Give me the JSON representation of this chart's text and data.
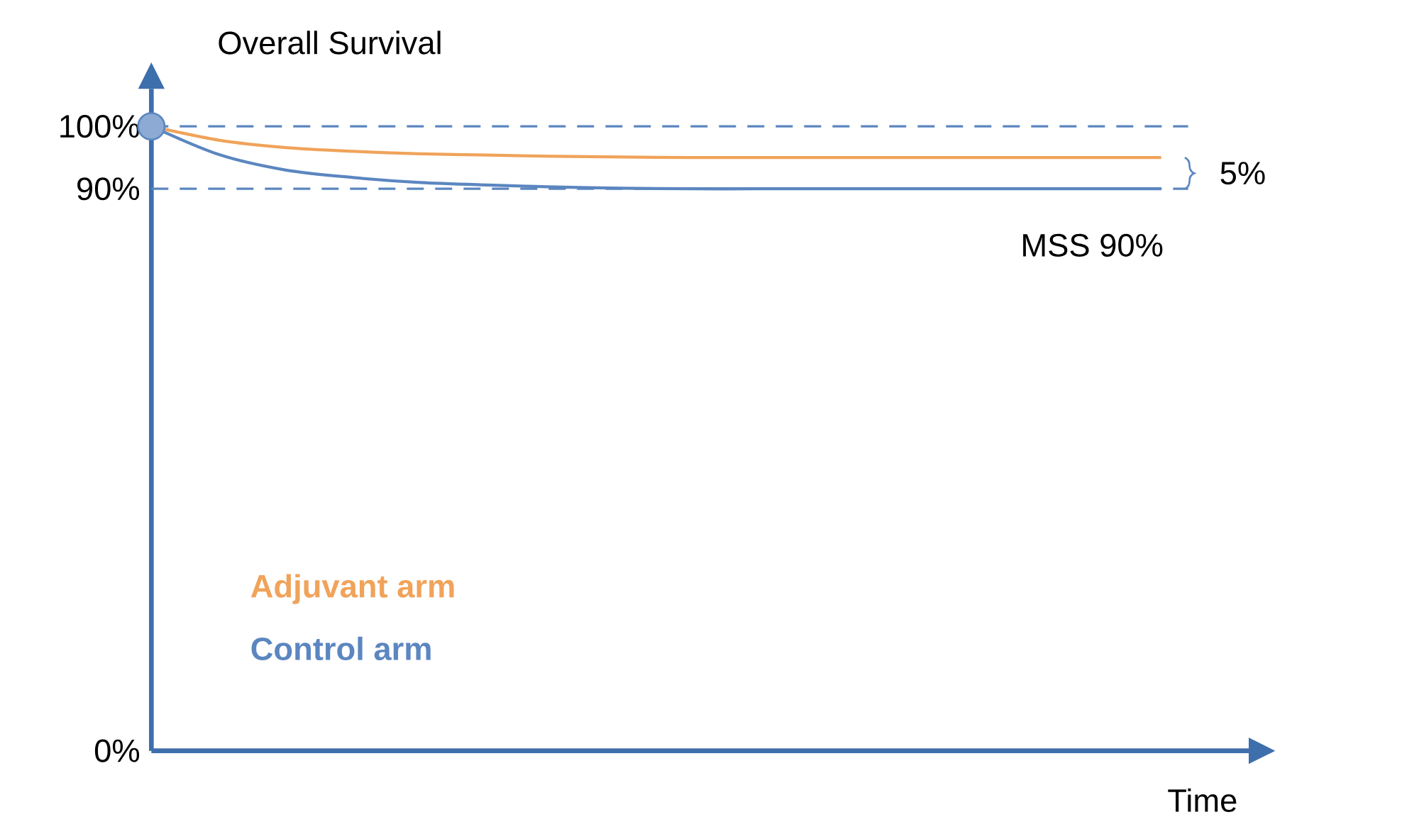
{
  "chart_data": {
    "type": "line",
    "title": "Overall Survival",
    "xlabel": "Time",
    "categories": [
      null,
      null,
      null,
      null,
      null,
      null,
      null,
      null,
      null,
      null,
      null,
      null,
      null,
      null,
      null,
      null
    ],
    "series": [
      {
        "name": "Adjuvant arm",
        "color": "#f0a35a",
        "values": [
          100,
          97.8,
          96.6,
          96,
          95.6,
          95.4,
          95.2,
          95.1,
          95,
          95,
          95,
          95,
          95,
          95,
          95,
          95
        ]
      },
      {
        "name": "Control arm",
        "color": "#5b86c0",
        "values": [
          100,
          95.5,
          93,
          91.8,
          91,
          90.6,
          90.3,
          90.1,
          90,
          90,
          90,
          90,
          90,
          90,
          90,
          90
        ]
      },
      {
        "type": "scatter",
        "color": "#5b86c0",
        "marker": "circle",
        "values": [
          100,
          null,
          null,
          null,
          null,
          null,
          null,
          null,
          null,
          null,
          null,
          null,
          null,
          null,
          null,
          null
        ]
      }
    ],
    "ylim": [
      0,
      106
    ],
    "yticks": [
      {
        "value": 0,
        "label": "0%"
      },
      {
        "value": 90,
        "label": "90%"
      },
      {
        "value": 100,
        "label": "100%"
      }
    ],
    "ref_lines": [
      {
        "axis": "y",
        "value": 100,
        "color": "#5b86c0",
        "line_style": "dashed"
      },
      {
        "axis": "y",
        "value": 90,
        "color": "#5b86c0",
        "line_style": "dashed"
      }
    ],
    "annotations": [
      "5%",
      "MSS 90%"
    ],
    "legend": "bottom left"
  }
}
